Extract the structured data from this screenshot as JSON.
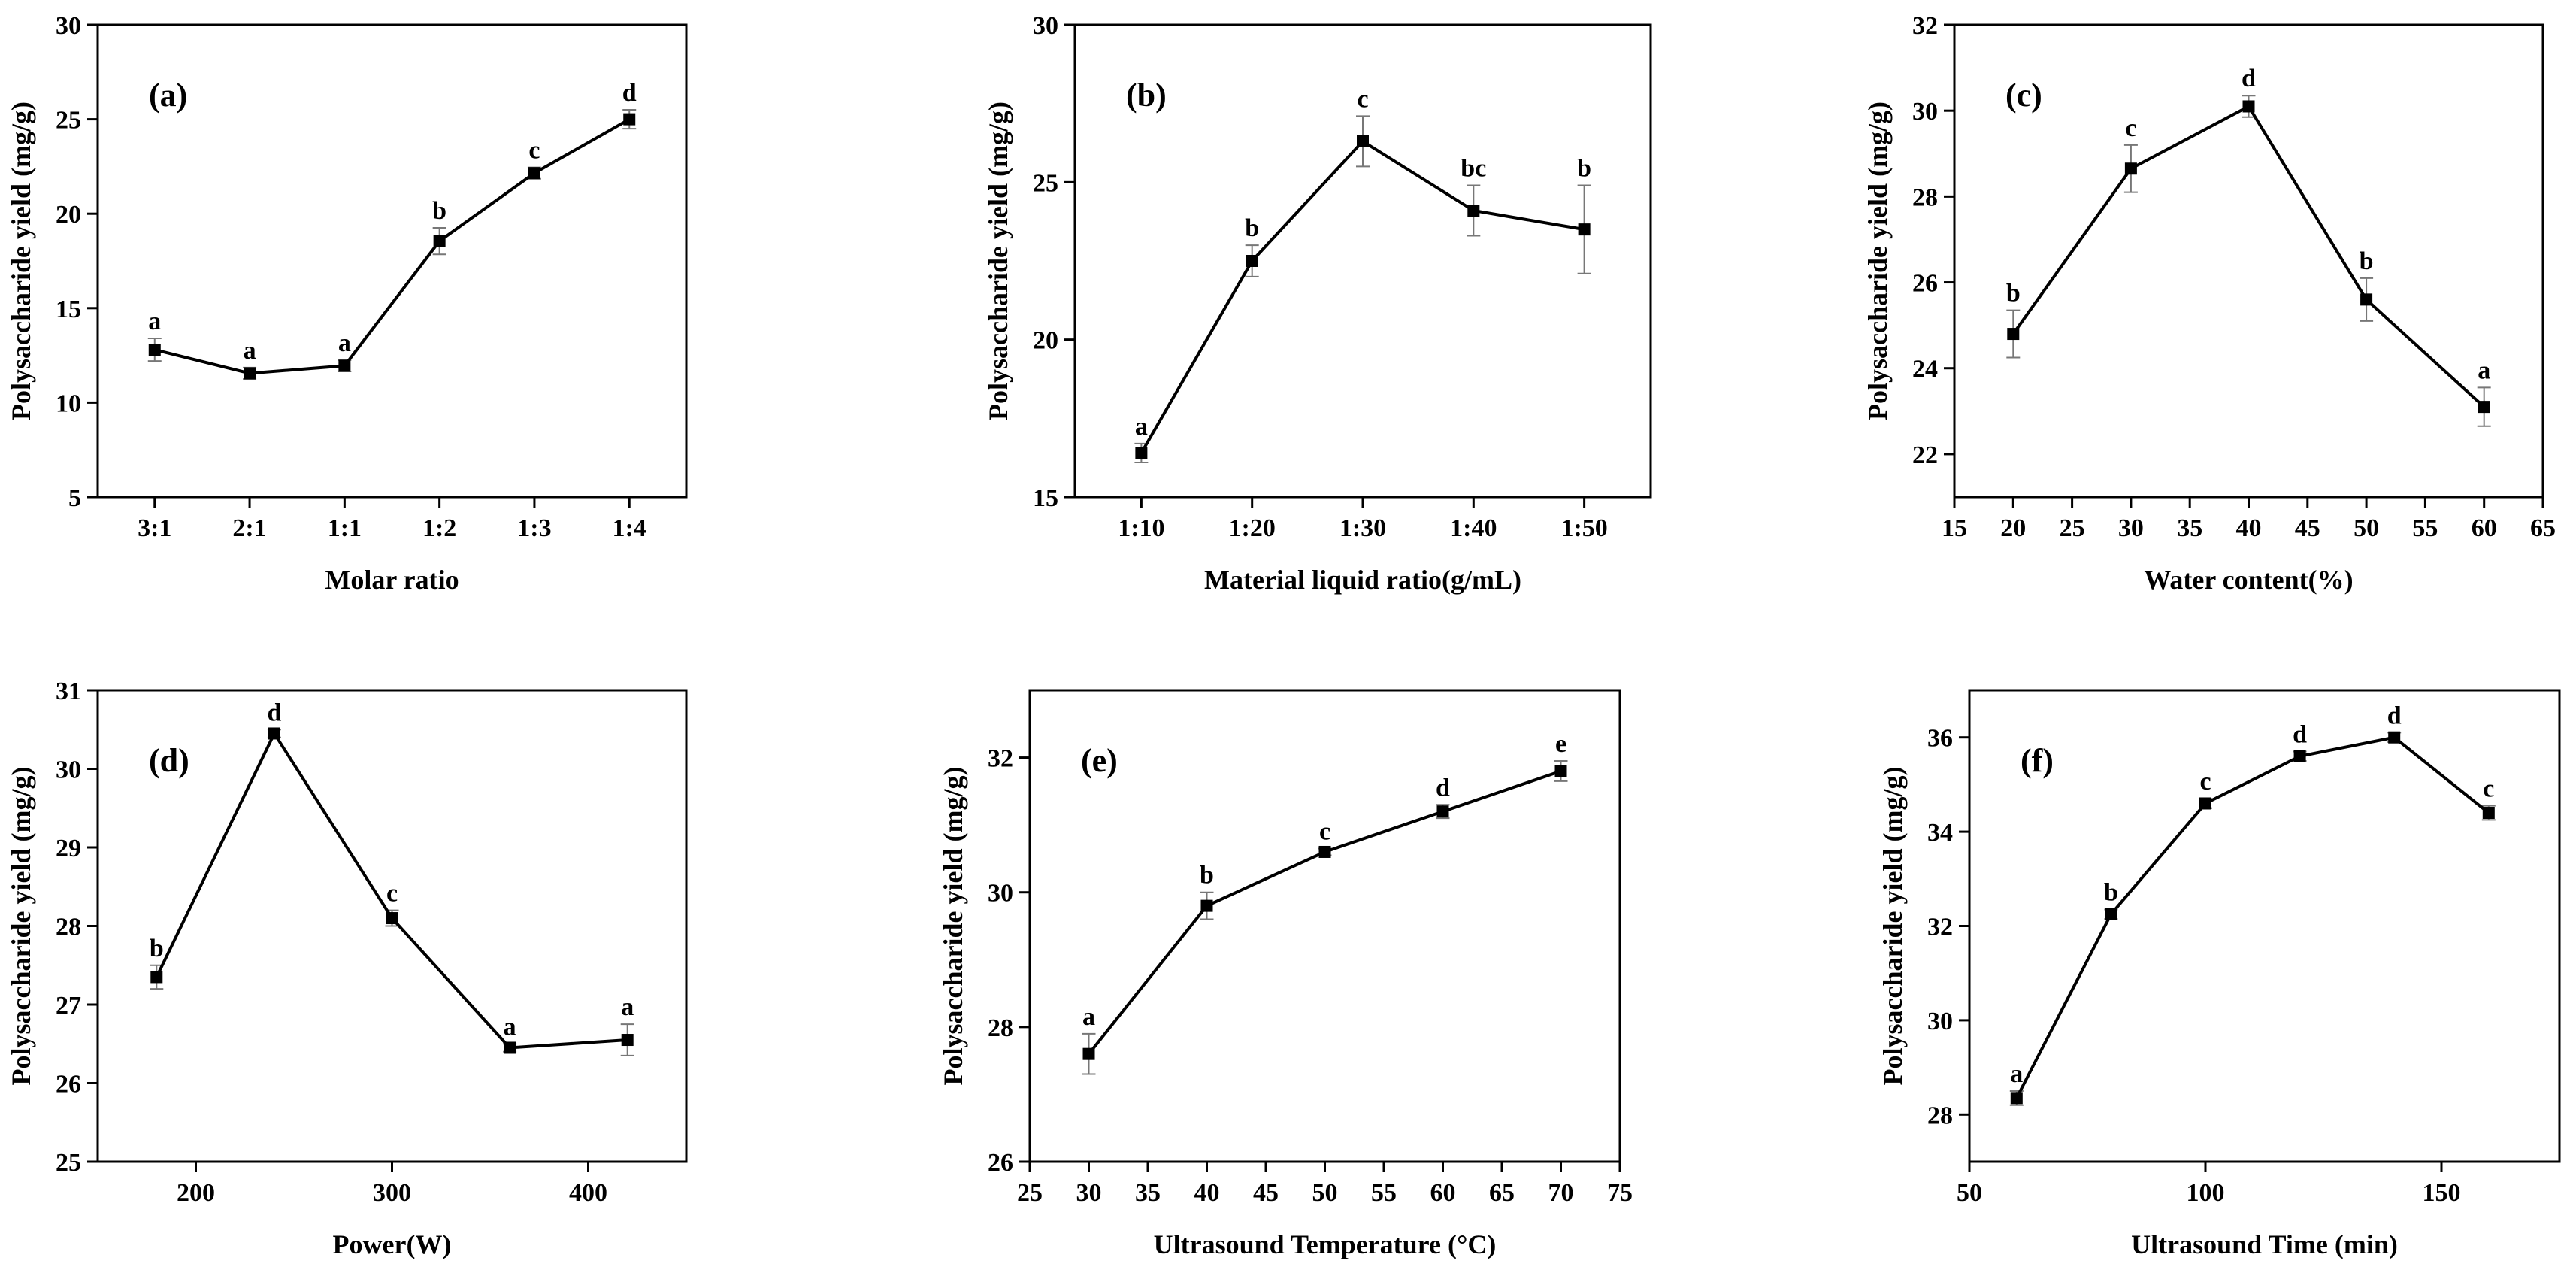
{
  "chart_data": [
    {
      "panel": "(a)",
      "type": "line",
      "xmode": "category",
      "categories": [
        "3:1",
        "2:1",
        "1:1",
        "1:2",
        "1:3",
        "1:4"
      ],
      "values": [
        12.8,
        11.55,
        11.95,
        18.55,
        22.15,
        25.0
      ],
      "errors": [
        0.6,
        0.3,
        0.3,
        0.7,
        0.3,
        0.5
      ],
      "labels": [
        "a",
        "a",
        "a",
        "b",
        "c",
        "d"
      ],
      "xlabel": "Molar ratio",
      "ylabel": "Polysaccharide yield (mg/g)",
      "ylim": [
        5,
        30
      ],
      "yticks": [
        5,
        10,
        15,
        20,
        25,
        30
      ],
      "yticklabels": [
        "5",
        "10",
        "15",
        "20",
        "25",
        "30"
      ]
    },
    {
      "panel": "(b)",
      "type": "line",
      "xmode": "category",
      "categories": [
        "1:10",
        "1:20",
        "1:30",
        "1:40",
        "1:50"
      ],
      "values": [
        16.4,
        22.5,
        26.3,
        24.1,
        23.5
      ],
      "errors": [
        0.3,
        0.5,
        0.8,
        0.8,
        1.4
      ],
      "labels": [
        "a",
        "b",
        "c",
        "bc",
        "b"
      ],
      "xlabel": "Material liquid ratio(g/mL)",
      "ylabel": "Polysaccharide yield (mg/g)",
      "ylim": [
        15,
        30
      ],
      "yticks": [
        15,
        20,
        25,
        30
      ],
      "yticklabels": [
        "15",
        "20",
        "25",
        "30"
      ]
    },
    {
      "panel": "(c)",
      "type": "line",
      "xmode": "numeric",
      "x": [
        20,
        30,
        40,
        50,
        60
      ],
      "values": [
        24.8,
        28.65,
        30.1,
        25.6,
        23.1
      ],
      "errors": [
        0.55,
        0.55,
        0.25,
        0.5,
        0.45
      ],
      "labels": [
        "b",
        "c",
        "d",
        "b",
        "a"
      ],
      "xlabel": "Water content(%)",
      "ylabel": "Polysaccharide yield (mg/g)",
      "xlim": [
        15,
        65
      ],
      "xticks": [
        15,
        20,
        25,
        30,
        35,
        40,
        45,
        50,
        55,
        60,
        65
      ],
      "xticklabels": [
        "15",
        "20",
        "25",
        "30",
        "35",
        "40",
        "45",
        "50",
        "55",
        "60",
        "65"
      ],
      "ylim": [
        21,
        32
      ],
      "yticks": [
        22,
        24,
        26,
        28,
        30,
        32
      ],
      "yticklabels": [
        "22",
        "24",
        "26",
        "28",
        "30",
        "32"
      ]
    },
    {
      "panel": "(d)",
      "type": "line",
      "xmode": "numeric",
      "x": [
        180,
        240,
        300,
        360,
        420
      ],
      "values": [
        27.35,
        30.45,
        28.1,
        26.45,
        26.55
      ],
      "errors": [
        0.15,
        0.05,
        0.1,
        0.05,
        0.2
      ],
      "labels": [
        "b",
        "d",
        "c",
        "a",
        "a"
      ],
      "xlabel": "Power(W)",
      "ylabel": "Polysaccharide yield (mg/g)",
      "xlim": [
        150,
        450
      ],
      "xticks": [
        200,
        300,
        400
      ],
      "xticklabels": [
        "200",
        "300",
        "400"
      ],
      "ylim": [
        25,
        31
      ],
      "yticks": [
        25,
        26,
        27,
        28,
        29,
        30,
        31
      ],
      "yticklabels": [
        "25",
        "26",
        "27",
        "28",
        "29",
        "30",
        "31"
      ]
    },
    {
      "panel": "(e)",
      "type": "line",
      "xmode": "numeric",
      "x": [
        30,
        40,
        50,
        60,
        70
      ],
      "values": [
        27.6,
        29.8,
        30.6,
        31.2,
        31.8
      ],
      "errors": [
        0.3,
        0.2,
        0.05,
        0.1,
        0.15
      ],
      "labels": [
        "a",
        "b",
        "c",
        "d",
        "e"
      ],
      "xlabel": "Ultrasound Temperature (°C)",
      "ylabel": "Polysaccharide yield (mg/g)",
      "xlim": [
        25,
        75
      ],
      "xticks": [
        25,
        30,
        35,
        40,
        45,
        50,
        55,
        60,
        65,
        70,
        75
      ],
      "xticklabels": [
        "25",
        "30",
        "35",
        "40",
        "45",
        "50",
        "55",
        "60",
        "65",
        "70",
        "75"
      ],
      "ylim": [
        26,
        33
      ],
      "yticks": [
        26,
        28,
        30,
        32
      ],
      "yticklabels": [
        "26",
        "28",
        "30",
        "32"
      ]
    },
    {
      "panel": "(f)",
      "type": "line",
      "xmode": "numeric",
      "x": [
        60,
        80,
        100,
        120,
        140,
        160
      ],
      "values": [
        28.35,
        32.25,
        34.6,
        35.6,
        36.0,
        34.4
      ],
      "errors": [
        0.15,
        0.1,
        0.1,
        0.1,
        0.1,
        0.15
      ],
      "labels": [
        "a",
        "b",
        "c",
        "d",
        "d",
        "c"
      ],
      "xlabel": "Ultrasound Time (min)",
      "ylabel": "Polysaccharide yield (mg/g)",
      "xlim": [
        50,
        175
      ],
      "xticks": [
        50,
        100,
        150
      ],
      "xticklabels": [
        "50",
        "100",
        "150"
      ],
      "ylim": [
        27,
        37
      ],
      "yticks": [
        28,
        30,
        32,
        34,
        36
      ],
      "yticklabels": [
        "28",
        "30",
        "32",
        "34",
        "36"
      ]
    }
  ]
}
